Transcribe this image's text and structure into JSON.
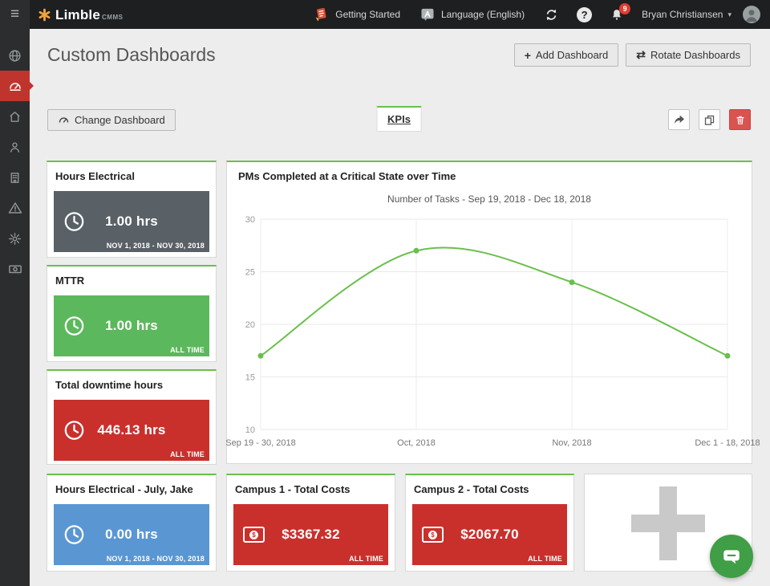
{
  "topbar": {
    "brand": "Limble",
    "brand_suffix": "CMMS",
    "getting_started_label": "Getting Started",
    "language_label": "Language (English)",
    "notification_count": "9",
    "user_name": "Bryan Christiansen"
  },
  "icons": {
    "hamburger": "≡",
    "question": "?",
    "plus": "+",
    "rotate": "⇄",
    "caret_down": "▾"
  },
  "header": {
    "title": "Custom Dashboards",
    "add_dashboard_label": "Add Dashboard",
    "rotate_dashboards_label": "Rotate Dashboards"
  },
  "toolbar": {
    "change_dashboard_label": "Change Dashboard",
    "active_tab": "KPIs"
  },
  "colors": {
    "accent_green": "#6abf4b",
    "active_sidebar_red": "#c0342e",
    "danger_red": "#d9534f",
    "topbar_bg": "#1d1f20",
    "sidebar_bg": "#2b2d2e"
  },
  "widgets": {
    "list": [
      {
        "title": "Hours Electrical",
        "value": "1.00 hrs",
        "period": "NOV 1, 2018 - NOV 30, 2018",
        "color": "#596066",
        "icon": "clock"
      },
      {
        "title": "MTTR",
        "value": "1.00 hrs",
        "period": "ALL TIME",
        "color": "#5cb85c",
        "icon": "clock"
      },
      {
        "title": "Total downtime hours",
        "value": "446.13 hrs",
        "period": "ALL TIME",
        "color": "#c9302c",
        "icon": "clock"
      },
      {
        "title": "Hours Electrical - July, Jake",
        "value": "0.00 hrs",
        "period": "NOV 1, 2018 - NOV 30, 2018",
        "color": "#5a96d2",
        "icon": "clock"
      },
      {
        "title": "Campus 1 - Total Costs",
        "value": "$3367.32",
        "period": "ALL TIME",
        "color": "#c9302c",
        "icon": "money"
      },
      {
        "title": "Campus 2 - Total Costs",
        "value": "$2067.70",
        "period": "ALL TIME",
        "color": "#c9302c",
        "icon": "money"
      }
    ]
  },
  "chart_data": {
    "type": "line",
    "title": "PMs Completed at a Critical State over Time",
    "subtitle": "Number of Tasks - Sep 19, 2018 - Dec 18, 2018",
    "categories": [
      "Sep 19 - 30, 2018",
      "Oct, 2018",
      "Nov, 2018",
      "Dec 1 - 18, 2018"
    ],
    "values": [
      17,
      27,
      24,
      17
    ],
    "xlabel": "",
    "ylabel": "",
    "ylim": [
      10,
      30
    ],
    "yticks": [
      10,
      15,
      20,
      25,
      30
    ],
    "grid": true,
    "legend": false,
    "line_color": "#6abf4b"
  }
}
